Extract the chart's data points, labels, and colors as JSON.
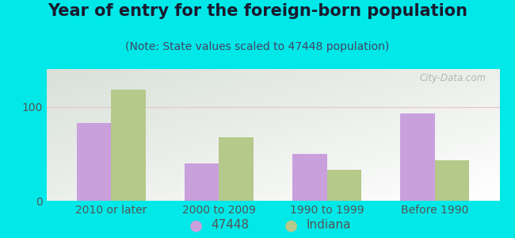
{
  "title": "Year of entry for the foreign-born population",
  "subtitle": "(Note: State values scaled to 47448 population)",
  "categories": [
    "2010 or later",
    "2000 to 2009",
    "1990 to 1999",
    "Before 1990"
  ],
  "series_47448": [
    83,
    40,
    50,
    93
  ],
  "series_indiana": [
    118,
    68,
    33,
    43
  ],
  "color_47448": "#c9a0dc",
  "color_indiana": "#b5c98a",
  "legend_47448": "47448",
  "legend_indiana": "Indiana",
  "ylim": [
    0,
    140
  ],
  "yticks": [
    0,
    100
  ],
  "outer_background": "#00e8e8",
  "bar_width": 0.32,
  "title_fontsize": 15,
  "subtitle_fontsize": 10,
  "tick_fontsize": 10,
  "legend_fontsize": 11,
  "watermark": "City-Data.com"
}
